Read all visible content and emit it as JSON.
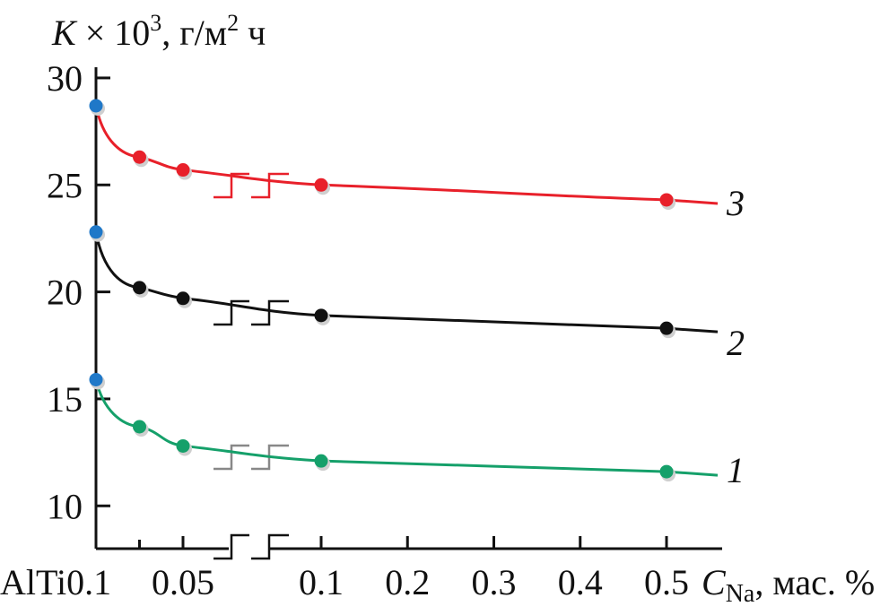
{
  "chart_data": {
    "type": "line",
    "ylabel": {
      "k": "K",
      "mult": " × 10",
      "exp": "3",
      "unit1": ", г/м",
      "exp2": "2",
      "unit2": " ч"
    },
    "xlabel": {
      "c": "C",
      "sub": "Na",
      "unit": ", мас. %"
    },
    "ylim": [
      8,
      30.5
    ],
    "yticks": [
      10,
      15,
      20,
      25,
      30
    ],
    "x_tick_labels": [
      "AlTi0.1",
      "0.05",
      "0.1",
      "0.2",
      "0.3",
      "0.4",
      "0.5"
    ],
    "segments": {
      "left": {
        "x": [
          "AlTi0.1",
          "0.05"
        ],
        "note": "before axis break"
      },
      "right": {
        "x": [
          0.1,
          0.5
        ],
        "note": "after axis break"
      }
    },
    "series": [
      {
        "name": "3",
        "color": "#e8202a",
        "points": [
          [
            0,
            28.7
          ],
          [
            0.025,
            26.3
          ],
          [
            0.05,
            25.7
          ],
          [
            0.1,
            25.0
          ],
          [
            0.5,
            24.3
          ]
        ]
      },
      {
        "name": "2",
        "color": "#111111",
        "points": [
          [
            0,
            22.8
          ],
          [
            0.025,
            20.2
          ],
          [
            0.05,
            19.7
          ],
          [
            0.1,
            18.9
          ],
          [
            0.5,
            18.3
          ]
        ]
      },
      {
        "name": "1",
        "color": "#15a06a",
        "points": [
          [
            0,
            15.9
          ],
          [
            0.025,
            13.7
          ],
          [
            0.05,
            12.8
          ],
          [
            0.1,
            12.1
          ],
          [
            0.5,
            11.6
          ]
        ]
      }
    ],
    "base_marker_color": "#1f78c8",
    "grid": false,
    "legend": "inline-right"
  }
}
